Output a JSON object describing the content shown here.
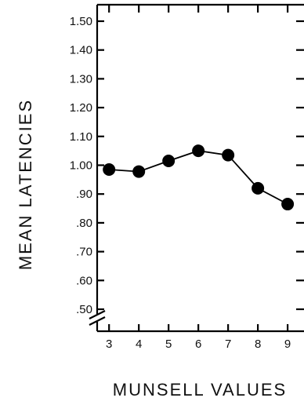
{
  "chart_data": {
    "type": "line",
    "title": "",
    "xlabel": "MUNSELL VALUES",
    "ylabel": "MEAN LATENCIES",
    "x": [
      3,
      4,
      5,
      6,
      7,
      8,
      9
    ],
    "x_tick_labels": [
      "3",
      "4",
      "5",
      "6",
      "7",
      "8",
      "9"
    ],
    "y_tick_labels": [
      ".50",
      ".60",
      ".70",
      ".80",
      ".90",
      "1.00",
      "1.10",
      "1.20",
      "1.30",
      "1.40",
      "1.50"
    ],
    "series": [
      {
        "values": [
          0.985,
          0.978,
          1.015,
          1.05,
          1.035,
          0.92,
          0.865
        ]
      }
    ],
    "ylim": [
      0.5,
      1.55
    ],
    "xlim": [
      2.6,
      9.55
    ],
    "y_axis_break": true,
    "grid": false,
    "colors": {
      "line": "#000000",
      "marker": "#000000"
    }
  }
}
